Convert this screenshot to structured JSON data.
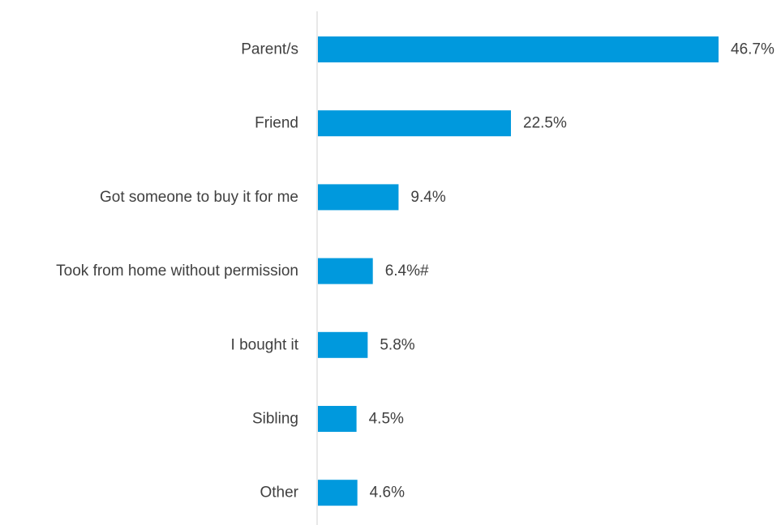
{
  "chart_data": {
    "type": "bar",
    "orientation": "horizontal",
    "categories": [
      "Parent/s",
      "Friend",
      "Got someone to buy it for me",
      "Took from home without permission",
      "I bought it",
      "Sibling",
      "Other"
    ],
    "values": [
      46.7,
      22.5,
      9.4,
      6.4,
      5.8,
      4.5,
      4.6
    ],
    "data_labels": [
      "46.7%",
      "22.5%",
      "9.4%",
      "6.4%#",
      "5.8%",
      "4.5%",
      "4.6%"
    ],
    "unit": "%",
    "xlim": [
      0,
      47
    ],
    "grid": false,
    "legend": "none",
    "bar_color": "#0099dd",
    "axis_color": "#d0d0d0"
  }
}
